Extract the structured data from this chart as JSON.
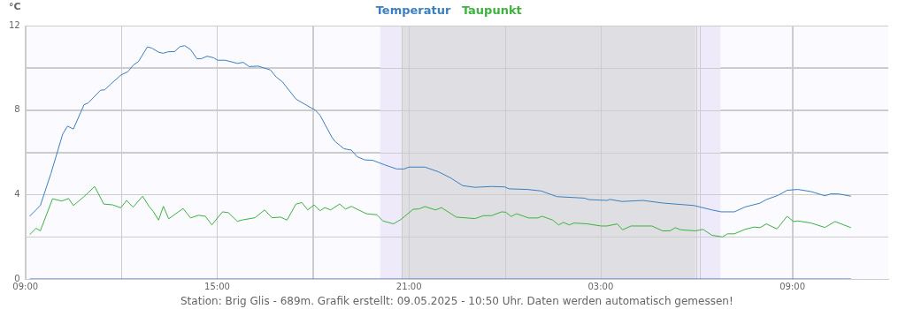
{
  "chart_data": {
    "type": "line",
    "ylabel": "°C",
    "annotations": [
      "Station: Brig Glis - 689m. Grafik erstellt: 09.05.2025 - 10:50 Uhr. Daten werden automatisch gemessen!"
    ],
    "xlim": [
      "2025-05-08T09:00",
      "2025-05-09T12:00"
    ],
    "xticks": [
      {
        "value": "2025-05-08T09:00",
        "label": "09:00"
      },
      {
        "value": "2025-05-08T12:00",
        "label": null
      },
      {
        "value": "2025-05-08T15:00",
        "label": "15:00"
      },
      {
        "value": "2025-05-08T18:00",
        "label": null
      },
      {
        "value": "2025-05-08T21:00",
        "label": "21:00"
      },
      {
        "value": "2025-05-09T00:00",
        "label": null
      },
      {
        "value": "2025-05-09T03:00",
        "label": "03:00"
      },
      {
        "value": "2025-05-09T06:00",
        "label": null
      },
      {
        "value": "2025-05-09T09:00",
        "label": "09:00"
      }
    ],
    "ylim": [
      0,
      12
    ],
    "yticks": [
      0,
      {
        "value": 2,
        "label": null
      },
      4,
      {
        "value": 6,
        "label": null
      },
      8,
      {
        "value": 10,
        "label": null
      },
      12
    ],
    "grid": true,
    "legend": "top",
    "marker": "none",
    "line_style": "solid",
    "bands": [
      {
        "axis": "x",
        "from": "2025-05-08T20:06",
        "to": "2025-05-08T20:46",
        "color": "#efeafa"
      },
      {
        "axis": "x",
        "from": "2025-05-08T20:46",
        "to": "2025-05-09T05:59",
        "color": "#dfdfe3"
      },
      {
        "axis": "x",
        "from": "2025-05-09T05:59",
        "to": "2025-05-09T06:45",
        "color": "#efeafa"
      }
    ],
    "ref_lines": [
      {
        "axis": "x",
        "value": "2025-05-08T20:46",
        "color": "#cccccc"
      },
      {
        "axis": "x",
        "value": "2025-05-09T06:06",
        "color": "#cccccc"
      }
    ],
    "series": [
      {
        "name": "Temperatur",
        "color": "#3a7fc1",
        "x": [
          "2025-05-08T09:08",
          "2025-05-08T09:28",
          "2025-05-08T09:48",
          "2025-05-08T10:10",
          "2025-05-08T10:19",
          "2025-05-08T10:30",
          "2025-05-08T10:50",
          "2025-05-08T10:58",
          "2025-05-08T11:21",
          "2025-05-08T11:29",
          "2025-05-08T11:41",
          "2025-05-08T12:00",
          "2025-05-08T12:12",
          "2025-05-08T12:23",
          "2025-05-08T12:32",
          "2025-05-08T12:49",
          "2025-05-08T12:57",
          "2025-05-08T13:11",
          "2025-05-08T13:19",
          "2025-05-08T13:28",
          "2025-05-08T13:40",
          "2025-05-08T13:50",
          "2025-05-08T13:59",
          "2025-05-08T14:10",
          "2025-05-08T14:22",
          "2025-05-08T14:30",
          "2025-05-08T14:41",
          "2025-05-08T14:53",
          "2025-05-08T15:01",
          "2025-05-08T15:15",
          "2025-05-08T15:38",
          "2025-05-08T15:49",
          "2025-05-08T16:00",
          "2025-05-08T16:17",
          "2025-05-08T16:40",
          "2025-05-08T16:51",
          "2025-05-08T17:02",
          "2025-05-08T17:28",
          "2025-05-08T17:34",
          "2025-05-08T17:56",
          "2025-05-08T18:04",
          "2025-05-08T18:13",
          "2025-05-08T18:35",
          "2025-05-08T18:41",
          "2025-05-08T18:58",
          "2025-05-08T19:12",
          "2025-05-08T19:23",
          "2025-05-08T19:37",
          "2025-05-08T19:52",
          "2025-05-08T20:14",
          "2025-05-08T20:37",
          "2025-05-08T20:51",
          "2025-05-08T21:00",
          "2025-05-08T21:30",
          "2025-05-08T21:56",
          "2025-05-08T22:18",
          "2025-05-08T22:41",
          "2025-05-08T23:04",
          "2025-05-08T23:35",
          "2025-05-09T00:00",
          "2025-05-09T00:08",
          "2025-05-09T00:42",
          "2025-05-09T01:08",
          "2025-05-09T01:38",
          "2025-05-09T02:29",
          "2025-05-09T02:38",
          "2025-05-09T03:12",
          "2025-05-09T03:17",
          "2025-05-09T03:40",
          "2025-05-09T04:19",
          "2025-05-09T04:59",
          "2025-05-09T05:55",
          "2025-05-09T06:29",
          "2025-05-09T06:46",
          "2025-05-09T07:11",
          "2025-05-09T07:31",
          "2025-05-09T07:59",
          "2025-05-09T08:11",
          "2025-05-09T08:33",
          "2025-05-09T08:50",
          "2025-05-09T09:10",
          "2025-05-09T09:35",
          "2025-05-09T10:01",
          "2025-05-09T10:12",
          "2025-05-09T10:26",
          "2025-05-09T10:50"
        ],
        "values": [
          2.97,
          3.48,
          5.0,
          6.86,
          7.24,
          7.1,
          8.25,
          8.34,
          8.94,
          8.96,
          9.25,
          9.67,
          9.81,
          10.14,
          10.29,
          10.99,
          10.94,
          10.73,
          10.69,
          10.76,
          10.77,
          11.0,
          11.05,
          10.87,
          10.43,
          10.43,
          10.55,
          10.48,
          10.36,
          10.36,
          10.21,
          10.26,
          10.06,
          10.08,
          9.9,
          9.56,
          9.35,
          8.52,
          8.43,
          8.11,
          8.0,
          7.76,
          6.73,
          6.52,
          6.17,
          6.1,
          5.79,
          5.64,
          5.62,
          5.41,
          5.21,
          5.21,
          5.3,
          5.3,
          5.07,
          4.79,
          4.42,
          4.34,
          4.38,
          4.36,
          4.27,
          4.24,
          4.17,
          3.9,
          3.83,
          3.76,
          3.72,
          3.77,
          3.67,
          3.72,
          3.59,
          3.48,
          3.27,
          3.18,
          3.18,
          3.41,
          3.59,
          3.76,
          3.96,
          4.2,
          4.24,
          4.14,
          3.94,
          4.03,
          4.03,
          3.92
        ]
      },
      {
        "name": "Taupunkt",
        "color": "#3cb33c",
        "x": [
          "2025-05-08T09:08",
          "2025-05-08T09:20",
          "2025-05-08T09:28",
          "2025-05-08T09:51",
          "2025-05-08T10:08",
          "2025-05-08T10:21",
          "2025-05-08T10:30",
          "2025-05-08T10:50",
          "2025-05-08T11:10",
          "2025-05-08T11:27",
          "2025-05-08T11:44",
          "2025-05-08T11:59",
          "2025-05-08T12:10",
          "2025-05-08T12:22",
          "2025-05-08T12:40",
          "2025-05-08T12:52",
          "2025-05-08T13:00",
          "2025-05-08T13:10",
          "2025-05-08T13:19",
          "2025-05-08T13:29",
          "2025-05-08T13:56",
          "2025-05-08T14:10",
          "2025-05-08T14:25",
          "2025-05-08T14:38",
          "2025-05-08T14:50",
          "2025-05-08T15:10",
          "2025-05-08T15:21",
          "2025-05-08T15:38",
          "2025-05-08T15:46",
          "2025-05-08T16:11",
          "2025-05-08T16:29",
          "2025-05-08T16:43",
          "2025-05-08T16:59",
          "2025-05-08T17:11",
          "2025-05-08T17:28",
          "2025-05-08T17:39",
          "2025-05-08T17:50",
          "2025-05-08T18:02",
          "2025-05-08T18:13",
          "2025-05-08T18:22",
          "2025-05-08T18:33",
          "2025-05-08T18:50",
          "2025-05-08T19:01",
          "2025-05-08T19:12",
          "2025-05-08T19:40",
          "2025-05-08T20:00",
          "2025-05-08T20:11",
          "2025-05-08T20:31",
          "2025-05-08T20:45",
          "2025-05-08T21:08",
          "2025-05-08T21:19",
          "2025-05-08T21:30",
          "2025-05-08T21:50",
          "2025-05-08T22:01",
          "2025-05-08T22:29",
          "2025-05-08T23:04",
          "2025-05-08T23:20",
          "2025-05-08T23:35",
          "2025-05-08T23:54",
          "2025-05-09T00:02",
          "2025-05-09T00:12",
          "2025-05-09T00:22",
          "2025-05-09T00:45",
          "2025-05-09T01:02",
          "2025-05-09T01:10",
          "2025-05-09T01:30",
          "2025-05-09T01:41",
          "2025-05-09T01:50",
          "2025-05-09T02:01",
          "2025-05-09T02:10",
          "2025-05-09T02:35",
          "2025-05-09T03:01",
          "2025-05-09T03:12",
          "2025-05-09T03:31",
          "2025-05-09T03:41",
          "2025-05-09T03:57",
          "2025-05-09T04:36",
          "2025-05-09T04:56",
          "2025-05-09T05:10",
          "2025-05-09T05:20",
          "2025-05-09T05:30",
          "2025-05-09T05:58",
          "2025-05-09T06:12",
          "2025-05-09T06:29",
          "2025-05-09T06:49",
          "2025-05-09T06:58",
          "2025-05-09T07:11",
          "2025-05-09T07:31",
          "2025-05-09T07:48",
          "2025-05-09T07:59",
          "2025-05-09T08:11",
          "2025-05-09T08:31",
          "2025-05-09T08:50",
          "2025-05-09T09:02",
          "2025-05-09T09:10",
          "2025-05-09T09:35",
          "2025-05-09T10:01",
          "2025-05-09T10:20",
          "2025-05-09T10:50"
        ],
        "values": [
          2.1,
          2.4,
          2.28,
          3.8,
          3.69,
          3.81,
          3.48,
          3.9,
          4.38,
          3.55,
          3.51,
          3.37,
          3.72,
          3.4,
          3.92,
          3.44,
          3.2,
          2.79,
          3.44,
          2.85,
          3.34,
          2.89,
          3.02,
          2.97,
          2.56,
          3.18,
          3.14,
          2.73,
          2.79,
          2.9,
          3.27,
          2.9,
          2.93,
          2.79,
          3.55,
          3.62,
          3.27,
          3.51,
          3.23,
          3.38,
          3.27,
          3.55,
          3.31,
          3.44,
          3.09,
          3.04,
          2.75,
          2.61,
          2.82,
          3.3,
          3.32,
          3.43,
          3.27,
          3.38,
          2.93,
          2.86,
          3.0,
          3.0,
          3.18,
          3.16,
          2.96,
          3.09,
          2.89,
          2.89,
          2.97,
          2.79,
          2.56,
          2.68,
          2.56,
          2.65,
          2.61,
          2.51,
          2.51,
          2.61,
          2.33,
          2.51,
          2.51,
          2.28,
          2.28,
          2.43,
          2.33,
          2.28,
          2.35,
          2.07,
          1.99,
          2.14,
          2.14,
          2.35,
          2.46,
          2.43,
          2.61,
          2.37,
          2.97,
          2.72,
          2.75,
          2.65,
          2.44,
          2.72,
          2.43
        ]
      },
      {
        "color": "#3b6fe0",
        "x": [
          "2025-05-08T09:08",
          "2025-05-09T10:50"
        ],
        "values": [
          0,
          0
        ]
      }
    ]
  }
}
